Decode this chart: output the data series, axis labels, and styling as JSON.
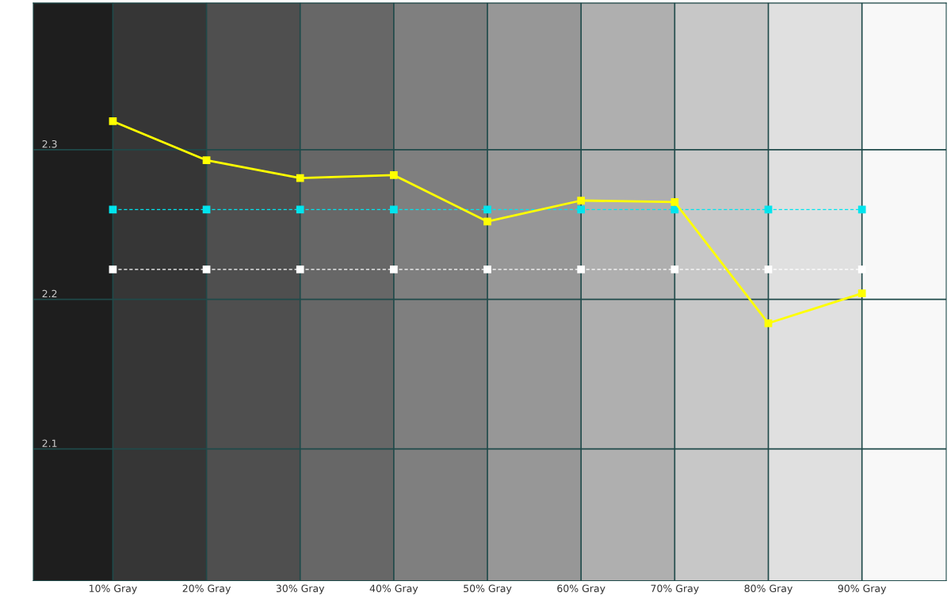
{
  "chart_data": {
    "type": "line",
    "categories": [
      "10% Gray",
      "20% Gray",
      "30% Gray",
      "40% Gray",
      "50% Gray",
      "60% Gray",
      "70% Gray",
      "80% Gray",
      "90% Gray"
    ],
    "series": [
      {
        "color": "#ffffff",
        "line_style": "dashed",
        "values": [
          2.22,
          2.22,
          2.22,
          2.22,
          2.22,
          2.22,
          2.22,
          2.22,
          2.22
        ]
      },
      {
        "color": "#00e5ee",
        "line_style": "dashed",
        "values": [
          2.26,
          2.26,
          2.26,
          2.26,
          2.26,
          2.26,
          2.26,
          2.26,
          2.26
        ]
      },
      {
        "color": "#ffff00",
        "line_style": "solid",
        "values": [
          2.319,
          2.293,
          2.281,
          2.283,
          2.252,
          2.266,
          2.265,
          2.184,
          2.204
        ]
      }
    ],
    "ylim": [
      2.012,
      2.398
    ],
    "yticks": [
      2.1,
      2.2,
      2.3
    ],
    "grid": true,
    "legend": false,
    "marker": "square"
  }
}
